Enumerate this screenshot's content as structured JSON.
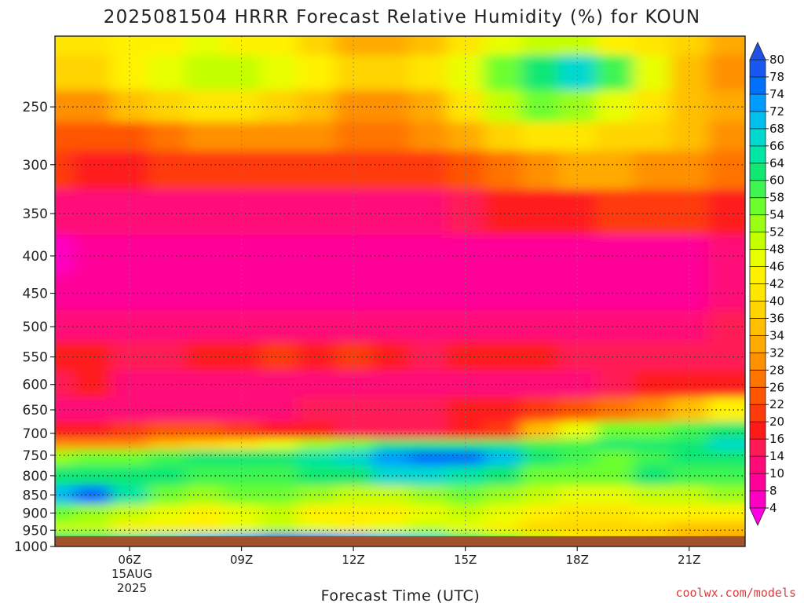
{
  "header": {
    "title": "2025081504 HRRR Forecast Relative Humidity (%) for KOUN"
  },
  "footer": {
    "credit": "coolwx.com/models"
  },
  "chart_data": {
    "type": "heatmap",
    "title": "2025081504 HRRR Forecast Relative Humidity (%) for KOUN",
    "xlabel": "Forecast Time (UTC)",
    "ylabel": "",
    "x_tick_labels": [
      "06Z",
      "09Z",
      "12Z",
      "15Z",
      "18Z",
      "21Z"
    ],
    "x_date_label": [
      "15AUG",
      "2025"
    ],
    "y_tick_labels": [
      "250",
      "300",
      "350",
      "400",
      "450",
      "500",
      "550",
      "600",
      "650",
      "700",
      "750",
      "800",
      "850",
      "900",
      "950",
      "1000"
    ],
    "y_scale": "log",
    "ylim_hPa": [
      1000,
      200
    ],
    "surface_pressure_hPa": 968,
    "grid": "dotted",
    "x_hours": [
      4,
      5,
      6,
      7,
      8,
      9,
      10,
      11,
      12,
      13,
      14,
      15,
      16,
      17,
      18,
      19,
      20,
      21,
      22
    ],
    "levels_hPa": [
      200,
      225,
      250,
      275,
      300,
      350,
      400,
      450,
      500,
      550,
      600,
      650,
      700,
      725,
      750,
      800,
      850,
      900,
      950,
      968
    ],
    "rh_percent": [
      [
        40,
        40,
        42,
        44,
        46,
        44,
        42,
        36,
        32,
        32,
        34,
        40,
        46,
        50,
        48,
        44,
        40,
        36,
        32
      ],
      [
        36,
        38,
        42,
        46,
        48,
        48,
        46,
        42,
        36,
        36,
        40,
        46,
        56,
        62,
        66,
        58,
        46,
        34,
        30
      ],
      [
        30,
        30,
        34,
        38,
        40,
        40,
        38,
        34,
        30,
        30,
        32,
        40,
        50,
        54,
        52,
        46,
        40,
        34,
        32
      ],
      [
        22,
        22,
        24,
        26,
        28,
        30,
        30,
        28,
        26,
        26,
        28,
        32,
        36,
        40,
        40,
        38,
        36,
        34,
        30
      ],
      [
        20,
        18,
        18,
        20,
        20,
        20,
        20,
        20,
        20,
        20,
        20,
        22,
        26,
        30,
        32,
        32,
        30,
        28,
        26
      ],
      [
        12,
        12,
        12,
        12,
        12,
        12,
        12,
        12,
        12,
        12,
        12,
        14,
        16,
        16,
        18,
        20,
        20,
        20,
        18
      ],
      [
        6,
        8,
        8,
        8,
        8,
        8,
        8,
        8,
        8,
        8,
        8,
        8,
        8,
        8,
        8,
        8,
        8,
        8,
        10
      ],
      [
        8,
        8,
        8,
        8,
        8,
        8,
        8,
        8,
        8,
        8,
        8,
        8,
        8,
        8,
        8,
        8,
        8,
        8,
        10
      ],
      [
        10,
        10,
        10,
        10,
        10,
        10,
        10,
        10,
        10,
        10,
        10,
        10,
        10,
        10,
        10,
        10,
        12,
        12,
        14
      ],
      [
        16,
        16,
        14,
        14,
        16,
        18,
        20,
        18,
        20,
        16,
        14,
        16,
        18,
        16,
        14,
        14,
        14,
        14,
        14
      ],
      [
        14,
        16,
        10,
        10,
        10,
        10,
        10,
        10,
        10,
        10,
        10,
        10,
        12,
        12,
        12,
        14,
        16,
        16,
        18
      ],
      [
        10,
        10,
        10,
        10,
        10,
        10,
        12,
        14,
        14,
        14,
        14,
        16,
        18,
        20,
        22,
        26,
        30,
        34,
        42
      ],
      [
        18,
        18,
        20,
        24,
        24,
        20,
        18,
        16,
        14,
        14,
        14,
        16,
        20,
        34,
        46,
        54,
        56,
        58,
        60
      ],
      [
        30,
        28,
        30,
        34,
        36,
        40,
        46,
        52,
        56,
        60,
        62,
        62,
        62,
        58,
        58,
        60,
        60,
        62,
        66
      ],
      [
        52,
        54,
        56,
        58,
        60,
        60,
        62,
        64,
        66,
        72,
        76,
        74,
        70,
        62,
        58,
        56,
        58,
        60,
        62
      ],
      [
        62,
        62,
        60,
        60,
        58,
        58,
        58,
        60,
        62,
        66,
        66,
        64,
        60,
        56,
        54,
        56,
        60,
        58,
        58
      ],
      [
        70,
        76,
        64,
        56,
        52,
        54,
        56,
        52,
        48,
        48,
        52,
        54,
        52,
        48,
        46,
        46,
        48,
        50,
        52
      ],
      [
        56,
        52,
        48,
        46,
        44,
        46,
        50,
        44,
        42,
        44,
        46,
        48,
        46,
        42,
        40,
        40,
        42,
        42,
        44
      ],
      [
        50,
        48,
        44,
        42,
        44,
        46,
        48,
        46,
        44,
        46,
        48,
        46,
        42,
        38,
        36,
        36,
        36,
        34,
        34
      ],
      [
        60,
        62,
        64,
        66,
        70,
        72,
        78,
        76,
        72,
        70,
        66,
        60,
        56,
        50,
        44,
        40,
        38,
        34,
        32
      ]
    ],
    "colorbar": {
      "levels": [
        4,
        8,
        10,
        14,
        16,
        20,
        22,
        26,
        28,
        32,
        34,
        36,
        40,
        42,
        46,
        48,
        52,
        54,
        58,
        60,
        64,
        66,
        68,
        72,
        74,
        78,
        80
      ],
      "colors": [
        "#ff00e6",
        "#ff00c2",
        "#ff0099",
        "#ff0a78",
        "#ff1a56",
        "#ff1a1a",
        "#ff3a0a",
        "#ff5500",
        "#ff7300",
        "#ff9000",
        "#ffaa00",
        "#ffbf00",
        "#ffd400",
        "#ffe600",
        "#fff200",
        "#e8ff00",
        "#c4ff00",
        "#9aff14",
        "#6cff2e",
        "#3ef551",
        "#10e873",
        "#00e6a6",
        "#00d8d0",
        "#00c0f0",
        "#009cff",
        "#0070ff",
        "#1858f0",
        "#1e50e6"
      ]
    },
    "colors": {
      "ground": "#a0522d",
      "grid": "#333333",
      "credit": "#e03b3b"
    }
  }
}
